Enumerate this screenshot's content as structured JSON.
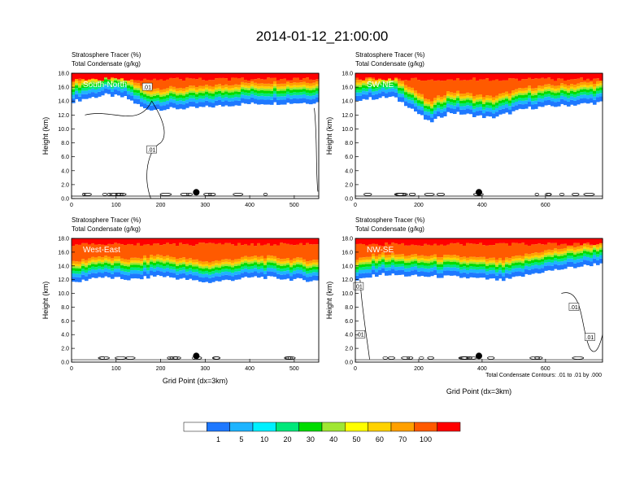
{
  "title": "2014-01-12_21:00:00",
  "colorbar": {
    "colors": [
      "#ffffff",
      "#1e78ff",
      "#1eb4ff",
      "#00f0ff",
      "#00e87a",
      "#00dc00",
      "#a0e632",
      "#ffff00",
      "#ffd200",
      "#ffa000",
      "#ff5a00",
      "#ff0000"
    ],
    "labels": [
      "1",
      "5",
      "10",
      "20",
      "30",
      "40",
      "50",
      "60",
      "70",
      "100"
    ]
  },
  "footer_note": "Total Condensate Contours: .01 to .01 by .000",
  "chart_data": [
    {
      "type": "heatmap",
      "label": "South-North",
      "title_line1": "Stratosphere Tracer   (%)",
      "title_line2": "Total Condensate   (g/kg)",
      "ylabel": "Height (km)",
      "xlabel": "",
      "xlim": [
        0,
        555
      ],
      "ylim": [
        0,
        18
      ],
      "xticks": [
        "0",
        "100",
        "200",
        "300",
        "400",
        "500"
      ],
      "yticks": [
        "0.0",
        "2.0",
        "4.0",
        "6.0",
        "8.0",
        "10.0",
        "12.0",
        "14.0",
        "16.0",
        "18.0"
      ],
      "contour_labels": [
        ".01",
        ".01"
      ],
      "marker_x": 280
    },
    {
      "type": "heatmap",
      "label": "SW-NE",
      "title_line1": "Stratosphere Tracer   (%)",
      "title_line2": "Total Condensate   (g/kg)",
      "ylabel": "Height (km)",
      "xlabel": "",
      "xlim": [
        0,
        780
      ],
      "ylim": [
        0,
        18
      ],
      "xticks": [
        "0",
        "200",
        "400",
        "600"
      ],
      "yticks": [
        "0.0",
        "2.0",
        "4.0",
        "6.0",
        "8.0",
        "10.0",
        "12.0",
        "14.0",
        "16.0",
        "18.0"
      ],
      "contour_labels": [],
      "marker_x": 390
    },
    {
      "type": "heatmap",
      "label": "West-East",
      "title_line1": "Stratosphere Tracer   (%)",
      "title_line2": "Total Condensate   (g/kg)",
      "ylabel": "Height (km)",
      "xlabel": "Grid Point (dx=3km)",
      "xlim": [
        0,
        555
      ],
      "ylim": [
        0,
        18
      ],
      "xticks": [
        "0",
        "100",
        "200",
        "300",
        "400",
        "500"
      ],
      "yticks": [
        "0.0",
        "2.0",
        "4.0",
        "6.0",
        "8.0",
        "10.0",
        "12.0",
        "14.0",
        "16.0",
        "18.0"
      ],
      "contour_labels": [],
      "marker_x": 280
    },
    {
      "type": "heatmap",
      "label": "NW-SE",
      "title_line1": "Stratosphere Tracer   (%)",
      "title_line2": "Total Condensate   (g/kg)",
      "ylabel": "Height (km)",
      "xlabel": "Grid Point (dx=3km)",
      "xlim": [
        0,
        780
      ],
      "ylim": [
        0,
        18
      ],
      "xticks": [
        "0",
        "200",
        "400",
        "600"
      ],
      "yticks": [
        "0.0",
        "2.0",
        "4.0",
        "6.0",
        "8.0",
        "10.0",
        "12.0",
        "14.0",
        "16.0",
        "18.0"
      ],
      "contour_labels": [
        ".01",
        ".01",
        ".01",
        ".01"
      ],
      "marker_x": 390
    }
  ]
}
